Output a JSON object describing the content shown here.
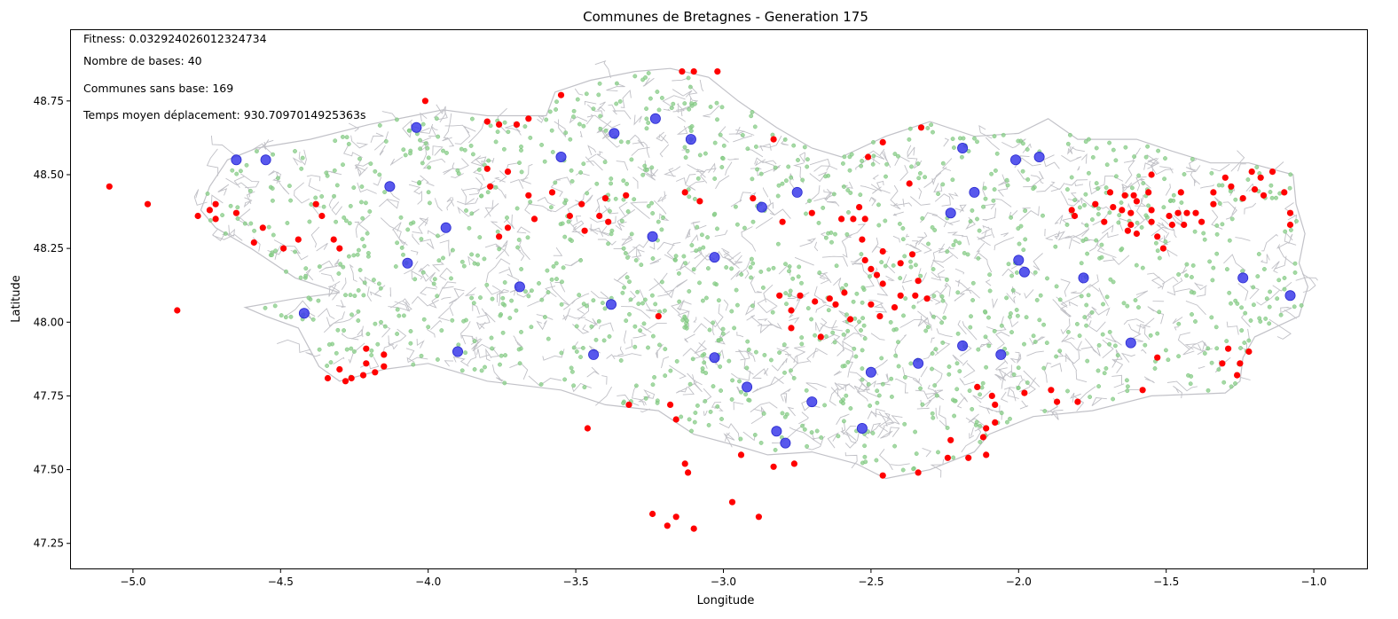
{
  "chart_data": {
    "type": "scatter",
    "title": "Communes de Bretagnes - Generation 175",
    "xlabel": "Longitude",
    "ylabel": "Latitude",
    "xlim": [
      -5.21,
      -0.82
    ],
    "ylim": [
      47.165,
      48.99
    ],
    "x_ticks": [
      -5.0,
      -4.5,
      -4.0,
      -3.5,
      -3.0,
      -2.5,
      -2.0,
      -1.5,
      -1.0
    ],
    "y_ticks": [
      47.25,
      47.5,
      47.75,
      48.0,
      48.25,
      48.5,
      48.75
    ],
    "grid": false,
    "legend": "none",
    "annotations": [
      "Fitness: 0.032924026012324734",
      "Nombre de bases: 40",
      "Communes sans base: 169",
      "Temps moyen déplacement: 930.7097014925363s"
    ],
    "colors": {
      "base": "#3b3bea",
      "no_base": "#ff0000",
      "commune": "#8fcf8f",
      "border": "#c0c0c6"
    },
    "series": [
      {
        "role": "bases",
        "color": "#3b3bea",
        "points": [
          [
            -4.65,
            48.55
          ],
          [
            -4.55,
            48.55
          ],
          [
            -4.13,
            48.46
          ],
          [
            -4.04,
            48.66
          ],
          [
            -3.94,
            48.32
          ],
          [
            -4.07,
            48.2
          ],
          [
            -3.69,
            48.12
          ],
          [
            -4.42,
            48.03
          ],
          [
            -3.9,
            47.9
          ],
          [
            -3.55,
            48.56
          ],
          [
            -3.37,
            48.64
          ],
          [
            -3.23,
            48.69
          ],
          [
            -3.11,
            48.62
          ],
          [
            -3.24,
            48.29
          ],
          [
            -3.38,
            48.06
          ],
          [
            -3.44,
            47.89
          ],
          [
            -3.03,
            48.22
          ],
          [
            -3.03,
            47.88
          ],
          [
            -2.92,
            47.78
          ],
          [
            -2.87,
            48.39
          ],
          [
            -2.75,
            48.44
          ],
          [
            -2.82,
            47.63
          ],
          [
            -2.79,
            47.59
          ],
          [
            -2.7,
            47.73
          ],
          [
            -2.53,
            47.64
          ],
          [
            -2.5,
            47.83
          ],
          [
            -2.34,
            47.86
          ],
          [
            -2.23,
            48.37
          ],
          [
            -2.19,
            48.59
          ],
          [
            -2.15,
            48.44
          ],
          [
            -2.01,
            48.55
          ],
          [
            -1.93,
            48.56
          ],
          [
            -2.0,
            48.21
          ],
          [
            -1.98,
            48.17
          ],
          [
            -1.78,
            48.15
          ],
          [
            -2.19,
            47.92
          ],
          [
            -2.06,
            47.89
          ],
          [
            -1.62,
            47.93
          ],
          [
            -1.24,
            48.15
          ],
          [
            -1.08,
            48.09
          ]
        ]
      },
      {
        "role": "communes_sans_base",
        "color": "#ff0000",
        "points": [
          [
            -5.08,
            48.46
          ],
          [
            -4.95,
            48.4
          ],
          [
            -4.85,
            48.04
          ],
          [
            -4.78,
            48.36
          ],
          [
            -4.74,
            48.38
          ],
          [
            -4.72,
            48.4
          ],
          [
            -4.72,
            48.35
          ],
          [
            -4.65,
            48.37
          ],
          [
            -4.59,
            48.27
          ],
          [
            -4.56,
            48.32
          ],
          [
            -4.49,
            48.25
          ],
          [
            -4.44,
            48.28
          ],
          [
            -4.38,
            48.4
          ],
          [
            -4.36,
            48.36
          ],
          [
            -4.34,
            47.81
          ],
          [
            -4.32,
            48.28
          ],
          [
            -4.3,
            48.25
          ],
          [
            -4.3,
            47.84
          ],
          [
            -4.28,
            47.8
          ],
          [
            -4.26,
            47.81
          ],
          [
            -4.22,
            47.82
          ],
          [
            -4.21,
            47.91
          ],
          [
            -4.21,
            47.86
          ],
          [
            -4.18,
            47.83
          ],
          [
            -4.15,
            47.85
          ],
          [
            -4.15,
            47.89
          ],
          [
            -4.01,
            48.75
          ],
          [
            -3.8,
            48.68
          ],
          [
            -3.8,
            48.52
          ],
          [
            -3.79,
            48.46
          ],
          [
            -3.76,
            48.67
          ],
          [
            -3.76,
            48.29
          ],
          [
            -3.73,
            48.51
          ],
          [
            -3.73,
            48.32
          ],
          [
            -3.7,
            48.67
          ],
          [
            -3.66,
            48.43
          ],
          [
            -3.66,
            48.69
          ],
          [
            -3.64,
            48.35
          ],
          [
            -3.58,
            48.44
          ],
          [
            -3.55,
            48.77
          ],
          [
            -3.52,
            48.36
          ],
          [
            -3.48,
            48.4
          ],
          [
            -3.47,
            48.31
          ],
          [
            -3.46,
            47.64
          ],
          [
            -3.42,
            48.36
          ],
          [
            -3.4,
            48.42
          ],
          [
            -3.39,
            48.34
          ],
          [
            -3.33,
            48.43
          ],
          [
            -3.32,
            47.72
          ],
          [
            -3.22,
            48.02
          ],
          [
            -3.18,
            47.72
          ],
          [
            -3.16,
            47.67
          ],
          [
            -3.14,
            48.85
          ],
          [
            -3.13,
            48.44
          ],
          [
            -3.13,
            47.52
          ],
          [
            -3.12,
            47.49
          ],
          [
            -3.1,
            48.85
          ],
          [
            -3.08,
            48.41
          ],
          [
            -3.02,
            48.85
          ],
          [
            -2.97,
            47.39
          ],
          [
            -2.94,
            47.55
          ],
          [
            -2.9,
            48.42
          ],
          [
            -2.88,
            47.34
          ],
          [
            -2.83,
            48.62
          ],
          [
            -2.83,
            47.51
          ],
          [
            -2.81,
            48.09
          ],
          [
            -2.8,
            48.34
          ],
          [
            -2.77,
            48.04
          ],
          [
            -2.77,
            47.98
          ],
          [
            -2.76,
            47.52
          ],
          [
            -2.74,
            48.09
          ],
          [
            -2.7,
            48.37
          ],
          [
            -2.69,
            48.07
          ],
          [
            -2.67,
            47.95
          ],
          [
            -2.64,
            48.08
          ],
          [
            -2.62,
            48.06
          ],
          [
            -2.6,
            48.35
          ],
          [
            -2.59,
            48.1
          ],
          [
            -2.57,
            48.01
          ],
          [
            -2.56,
            48.35
          ],
          [
            -2.54,
            48.39
          ],
          [
            -2.53,
            48.28
          ],
          [
            -2.52,
            48.21
          ],
          [
            -2.52,
            48.35
          ],
          [
            -2.51,
            48.56
          ],
          [
            -2.5,
            48.06
          ],
          [
            -2.5,
            48.18
          ],
          [
            -2.48,
            48.16
          ],
          [
            -2.47,
            48.02
          ],
          [
            -2.46,
            48.13
          ],
          [
            -2.46,
            48.24
          ],
          [
            -2.46,
            48.61
          ],
          [
            -2.46,
            47.48
          ],
          [
            -2.42,
            48.05
          ],
          [
            -2.4,
            48.09
          ],
          [
            -2.4,
            48.2
          ],
          [
            -2.37,
            48.47
          ],
          [
            -2.36,
            48.23
          ],
          [
            -2.35,
            48.09
          ],
          [
            -2.34,
            48.14
          ],
          [
            -2.33,
            48.66
          ],
          [
            -2.31,
            48.08
          ],
          [
            -2.34,
            47.49
          ],
          [
            -2.24,
            47.54
          ],
          [
            -2.23,
            47.6
          ],
          [
            -2.17,
            47.54
          ],
          [
            -2.14,
            47.78
          ],
          [
            -2.12,
            47.61
          ],
          [
            -2.11,
            47.64
          ],
          [
            -2.11,
            47.55
          ],
          [
            -2.09,
            47.75
          ],
          [
            -2.08,
            47.72
          ],
          [
            -2.08,
            47.66
          ],
          [
            -1.98,
            47.76
          ],
          [
            -1.89,
            47.77
          ],
          [
            -1.87,
            47.73
          ],
          [
            -1.82,
            48.38
          ],
          [
            -1.81,
            48.36
          ],
          [
            -1.8,
            47.73
          ],
          [
            -1.74,
            48.4
          ],
          [
            -1.71,
            48.34
          ],
          [
            -1.69,
            48.44
          ],
          [
            -1.68,
            48.39
          ],
          [
            -1.65,
            48.38
          ],
          [
            -1.64,
            48.43
          ],
          [
            -1.63,
            48.31
          ],
          [
            -1.62,
            48.37
          ],
          [
            -1.62,
            48.33
          ],
          [
            -1.61,
            48.43
          ],
          [
            -1.6,
            48.3
          ],
          [
            -1.6,
            48.41
          ],
          [
            -1.58,
            47.77
          ],
          [
            -1.56,
            48.44
          ],
          [
            -1.55,
            48.38
          ],
          [
            -1.55,
            48.5
          ],
          [
            -1.55,
            48.34
          ],
          [
            -1.53,
            48.29
          ],
          [
            -1.53,
            47.88
          ],
          [
            -1.51,
            48.25
          ],
          [
            -1.49,
            48.36
          ],
          [
            -1.48,
            48.33
          ],
          [
            -1.46,
            48.37
          ],
          [
            -1.45,
            48.44
          ],
          [
            -1.44,
            48.33
          ],
          [
            -1.43,
            48.37
          ],
          [
            -1.4,
            48.37
          ],
          [
            -1.38,
            48.34
          ],
          [
            -1.34,
            48.44
          ],
          [
            -1.34,
            48.4
          ],
          [
            -1.31,
            47.86
          ],
          [
            -1.3,
            48.49
          ],
          [
            -1.29,
            47.91
          ],
          [
            -1.28,
            48.46
          ],
          [
            -1.26,
            47.82
          ],
          [
            -1.25,
            47.86
          ],
          [
            -1.24,
            48.42
          ],
          [
            -1.22,
            47.9
          ],
          [
            -1.21,
            48.51
          ],
          [
            -1.2,
            48.45
          ],
          [
            -1.18,
            48.49
          ],
          [
            -1.17,
            48.43
          ],
          [
            -1.14,
            48.51
          ],
          [
            -1.1,
            48.44
          ],
          [
            -1.08,
            48.37
          ],
          [
            -1.08,
            48.33
          ],
          [
            -3.1,
            47.3
          ],
          [
            -3.16,
            47.34
          ],
          [
            -3.19,
            47.31
          ],
          [
            -3.24,
            47.35
          ]
        ]
      }
    ]
  }
}
